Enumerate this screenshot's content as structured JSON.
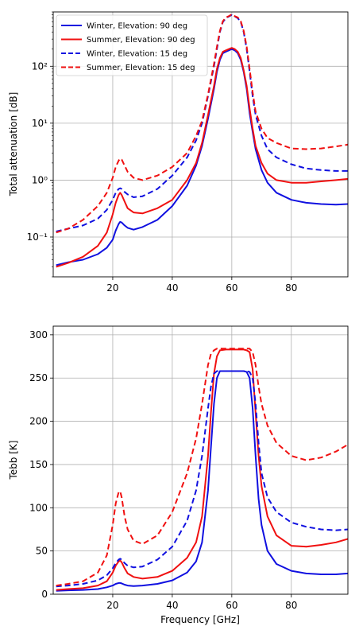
{
  "colors": {
    "winter": "#1010e0",
    "summer": "#f01010"
  },
  "chart_data": [
    {
      "type": "line",
      "xlabel": "",
      "ylabel": "Total attenuation [dB]",
      "yscale": "log",
      "xlim": [
        0,
        99
      ],
      "ylim": [
        0.02,
        900
      ],
      "grid": true,
      "legend_position": "top-left",
      "xticks": [
        20,
        40,
        60,
        80
      ],
      "xtick_labels": [
        "20",
        "40",
        "60",
        "80"
      ],
      "yticks": [
        0.1,
        1,
        10,
        100
      ],
      "ytick_labels": [
        "10⁻¹",
        "10⁰",
        "10¹",
        "10²"
      ],
      "series": [
        {
          "name": "Winter, Elevation: 90 deg",
          "color": "winter",
          "dashed": false,
          "x": [
            1,
            5,
            10,
            15,
            18,
            20,
            21,
            22,
            22.5,
            23,
            24,
            25,
            27,
            30,
            35,
            40,
            45,
            48,
            50,
            52,
            54,
            55,
            56,
            57,
            58,
            59,
            60,
            61,
            62,
            63,
            64,
            65,
            66,
            67,
            68,
            70,
            72,
            75,
            80,
            85,
            90,
            95,
            99
          ],
          "y": [
            0.032,
            0.036,
            0.04,
            0.05,
            0.065,
            0.09,
            0.13,
            0.17,
            0.185,
            0.18,
            0.16,
            0.145,
            0.135,
            0.15,
            0.2,
            0.35,
            0.8,
            1.8,
            4,
            12,
            40,
            80,
            130,
            170,
            180,
            190,
            200,
            190,
            170,
            130,
            80,
            40,
            15,
            7,
            3.5,
            1.5,
            0.9,
            0.6,
            0.45,
            0.4,
            0.38,
            0.37,
            0.38
          ]
        },
        {
          "name": "Summer, Elevation: 90 deg",
          "color": "summer",
          "dashed": false,
          "x": [
            1,
            5,
            10,
            15,
            18,
            20,
            21,
            22,
            22.5,
            23,
            24,
            25,
            27,
            30,
            35,
            40,
            45,
            48,
            50,
            52,
            54,
            55,
            56,
            57,
            58,
            59,
            60,
            61,
            62,
            63,
            64,
            65,
            66,
            67,
            68,
            70,
            72,
            75,
            80,
            85,
            90,
            95,
            99
          ],
          "y": [
            0.03,
            0.035,
            0.045,
            0.07,
            0.12,
            0.25,
            0.4,
            0.55,
            0.6,
            0.55,
            0.42,
            0.32,
            0.27,
            0.26,
            0.32,
            0.45,
            1,
            2,
            4.5,
            14,
            45,
            90,
            140,
            180,
            190,
            200,
            210,
            200,
            180,
            140,
            85,
            45,
            18,
            8,
            4,
            2,
            1.3,
            1.0,
            0.9,
            0.9,
            0.95,
            1.0,
            1.05
          ]
        },
        {
          "name": "Winter, Elevation: 15 deg",
          "color": "winter",
          "dashed": true,
          "x": [
            1,
            5,
            10,
            15,
            18,
            20,
            21,
            22,
            22.5,
            23,
            24,
            25,
            27,
            30,
            35,
            40,
            45,
            48,
            50,
            52,
            54,
            55,
            56,
            57,
            58,
            59,
            60,
            61,
            62,
            63,
            64,
            65,
            66,
            67,
            68,
            70,
            72,
            75,
            80,
            85,
            90,
            95,
            99
          ],
          "y": [
            0.125,
            0.14,
            0.16,
            0.21,
            0.3,
            0.45,
            0.6,
            0.7,
            0.72,
            0.7,
            0.62,
            0.56,
            0.5,
            0.52,
            0.7,
            1.2,
            2.5,
            5,
            10,
            30,
            100,
            200,
            400,
            600,
            700,
            750,
            800,
            750,
            700,
            600,
            400,
            200,
            80,
            30,
            14,
            6,
            3.5,
            2.5,
            1.9,
            1.6,
            1.5,
            1.45,
            1.45
          ]
        },
        {
          "name": "Summer, Elevation: 15 deg",
          "color": "summer",
          "dashed": true,
          "x": [
            1,
            5,
            10,
            15,
            18,
            20,
            21,
            22,
            22.5,
            23,
            24,
            25,
            27,
            30,
            35,
            40,
            45,
            48,
            50,
            52,
            54,
            55,
            56,
            57,
            58,
            59,
            60,
            61,
            62,
            63,
            64,
            65,
            66,
            67,
            68,
            70,
            72,
            75,
            80,
            85,
            90,
            95,
            99
          ],
          "y": [
            0.12,
            0.14,
            0.2,
            0.35,
            0.6,
            1.1,
            1.7,
            2.2,
            2.4,
            2.3,
            1.8,
            1.4,
            1.1,
            1.0,
            1.2,
            1.7,
            3,
            6,
            11,
            32,
            110,
            220,
            420,
            620,
            720,
            760,
            820,
            760,
            720,
            620,
            420,
            220,
            90,
            35,
            16,
            8,
            5.5,
            4.5,
            3.6,
            3.5,
            3.6,
            3.9,
            4.2
          ]
        }
      ]
    },
    {
      "type": "line",
      "xlabel": "Frequency [GHz]",
      "ylabel": "Tebb [K]",
      "yscale": "linear",
      "xlim": [
        0,
        99
      ],
      "ylim": [
        0,
        310
      ],
      "grid": true,
      "xticks": [
        20,
        40,
        60,
        80
      ],
      "xtick_labels": [
        "20",
        "40",
        "60",
        "80"
      ],
      "yticks": [
        0,
        50,
        100,
        150,
        200,
        250,
        300
      ],
      "ytick_labels": [
        "0",
        "50",
        "100",
        "150",
        "200",
        "250",
        "300"
      ],
      "series": [
        {
          "color": "winter",
          "dashed": false,
          "x": [
            1,
            5,
            10,
            15,
            18,
            20,
            21,
            22,
            22.5,
            23,
            24,
            25,
            27,
            30,
            35,
            40,
            45,
            48,
            50,
            52,
            53,
            54,
            55,
            56,
            58,
            60,
            62,
            64,
            65,
            66,
            67,
            68,
            69,
            70,
            72,
            75,
            80,
            85,
            90,
            95,
            99
          ],
          "y": [
            4,
            4.5,
            5,
            6,
            8,
            10,
            12,
            13,
            13,
            12.5,
            11,
            10,
            9.5,
            10,
            12,
            16,
            25,
            38,
            60,
            120,
            170,
            220,
            250,
            258,
            258,
            258,
            258,
            258,
            257,
            250,
            215,
            160,
            110,
            80,
            50,
            35,
            27,
            24,
            23,
            23,
            24
          ]
        },
        {
          "color": "summer",
          "dashed": false,
          "x": [
            1,
            5,
            10,
            15,
            18,
            20,
            21,
            22,
            22.5,
            23,
            24,
            25,
            27,
            30,
            35,
            40,
            45,
            48,
            50,
            52,
            53,
            54,
            55,
            56,
            58,
            60,
            62,
            64,
            65,
            66,
            67,
            68,
            69,
            70,
            72,
            75,
            80,
            85,
            90,
            95,
            99
          ],
          "y": [
            5,
            6,
            7,
            10,
            15,
            25,
            33,
            38,
            39,
            37,
            30,
            24,
            20,
            18,
            20,
            27,
            42,
            60,
            90,
            160,
            210,
            255,
            275,
            282,
            283,
            283,
            283,
            283,
            282,
            280,
            260,
            210,
            160,
            125,
            90,
            68,
            56,
            55,
            57,
            60,
            64
          ]
        },
        {
          "color": "winter",
          "dashed": true,
          "x": [
            1,
            5,
            10,
            15,
            18,
            20,
            21,
            22,
            22.5,
            23,
            24,
            25,
            27,
            30,
            35,
            40,
            45,
            48,
            50,
            52,
            53,
            54,
            55,
            56,
            58,
            60,
            62,
            64,
            65,
            66,
            67,
            68,
            69,
            70,
            72,
            75,
            80,
            85,
            90,
            95,
            99
          ],
          "y": [
            9,
            10,
            12,
            16,
            22,
            30,
            36,
            40,
            41,
            40,
            36,
            33,
            31,
            32,
            40,
            55,
            85,
            120,
            160,
            215,
            240,
            255,
            258,
            258,
            258,
            258,
            258,
            258,
            258,
            257,
            250,
            220,
            175,
            140,
            112,
            95,
            83,
            78,
            75,
            74,
            75
          ]
        },
        {
          "color": "summer",
          "dashed": true,
          "x": [
            1,
            5,
            10,
            15,
            18,
            20,
            21,
            22,
            22.5,
            23,
            24,
            25,
            27,
            30,
            35,
            40,
            45,
            48,
            50,
            52,
            53,
            54,
            55,
            56,
            58,
            60,
            62,
            64,
            65,
            66,
            67,
            68,
            69,
            70,
            72,
            75,
            80,
            85,
            90,
            95,
            99
          ],
          "y": [
            10,
            12,
            15,
            25,
            45,
            80,
            105,
            118,
            119,
            112,
            90,
            75,
            62,
            58,
            68,
            95,
            140,
            180,
            220,
            265,
            278,
            282,
            284,
            284,
            284,
            284,
            284,
            284,
            284,
            284,
            280,
            265,
            240,
            220,
            195,
            175,
            160,
            155,
            158,
            165,
            173
          ]
        }
      ]
    }
  ]
}
